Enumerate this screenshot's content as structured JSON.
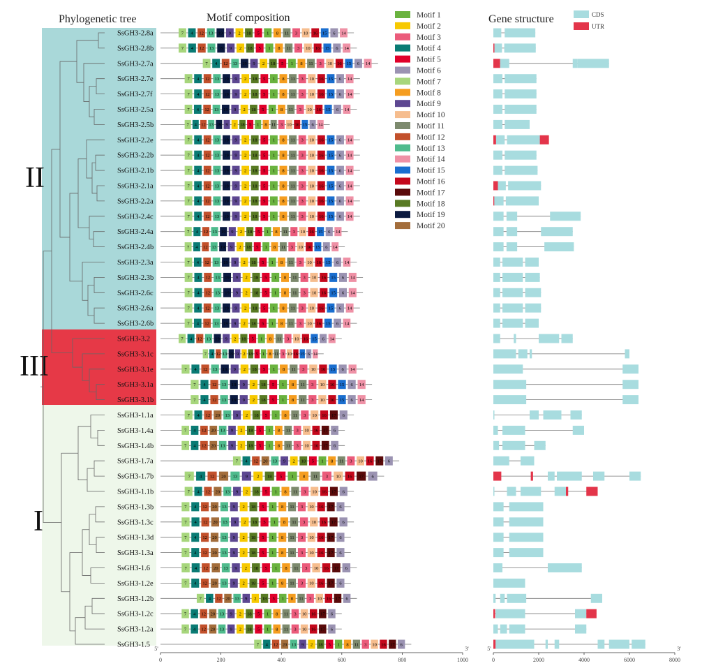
{
  "titles": {
    "tree": "Phylogenetic tree",
    "motif": "Motif composition",
    "gene": "Gene structure"
  },
  "clades": {
    "II": "II",
    "III": "III",
    "I": "I"
  },
  "colors": {
    "cladeII": "#a9d8d9",
    "cladeIII": "#e63947",
    "cladeI": "#eef7ea",
    "cds": "#a8dcdf",
    "utr": "#e3354a",
    "line": "#777777"
  },
  "genes": [
    {
      "name": "SsGH3-2.8a",
      "clade": "II"
    },
    {
      "name": "SsGH3-2.8b",
      "clade": "II"
    },
    {
      "name": "SsGH3-2.7a",
      "clade": "II"
    },
    {
      "name": "SsGH3-2.7e",
      "clade": "II"
    },
    {
      "name": "SsGH3-2.7f",
      "clade": "II"
    },
    {
      "name": "SsGH3-2.5a",
      "clade": "II"
    },
    {
      "name": "SsGH3-2.5b",
      "clade": "II"
    },
    {
      "name": "SsGH3-2.2e",
      "clade": "II"
    },
    {
      "name": "SsGH3-2.2b",
      "clade": "II"
    },
    {
      "name": "SsGH3-2.1b",
      "clade": "II"
    },
    {
      "name": "SsGH3-2.1a",
      "clade": "II"
    },
    {
      "name": "SsGH3-2.2a",
      "clade": "II"
    },
    {
      "name": "SsGH3-2.4c",
      "clade": "II"
    },
    {
      "name": "SsGH3-2.4a",
      "clade": "II"
    },
    {
      "name": "SsGH3-2.4b",
      "clade": "II"
    },
    {
      "name": "SsGH3-2.3a",
      "clade": "II"
    },
    {
      "name": "SsGH3-2.3b",
      "clade": "II"
    },
    {
      "name": "SsGH3-2.6c",
      "clade": "II"
    },
    {
      "name": "SsGH3-2.6a",
      "clade": "II"
    },
    {
      "name": "SsGH3-2.6b",
      "clade": "II"
    },
    {
      "name": "SsGH3-3.2",
      "clade": "III"
    },
    {
      "name": "SsGH3-3.1c",
      "clade": "III"
    },
    {
      "name": "SsGH3-3.1e",
      "clade": "III"
    },
    {
      "name": "SsGH3-3.1a",
      "clade": "III"
    },
    {
      "name": "SsGH3-3.1b",
      "clade": "III"
    },
    {
      "name": "SsGH3-1.1a",
      "clade": "I"
    },
    {
      "name": "SsGH3-1.4a",
      "clade": "I"
    },
    {
      "name": "SsGH3-1.4b",
      "clade": "I"
    },
    {
      "name": "SsGH3-1.7a",
      "clade": "I"
    },
    {
      "name": "SsGH3-1.7b",
      "clade": "I"
    },
    {
      "name": "SsGH3-1.1b",
      "clade": "I"
    },
    {
      "name": "SsGH3-1.3b",
      "clade": "I"
    },
    {
      "name": "SsGH3-1.3c",
      "clade": "I"
    },
    {
      "name": "SsGH3-1.3d",
      "clade": "I"
    },
    {
      "name": "SsGH3-1.3a",
      "clade": "I"
    },
    {
      "name": "SsGH3-1.6",
      "clade": "I"
    },
    {
      "name": "SsGH3-1.2e",
      "clade": "I"
    },
    {
      "name": "SsGH3-1.2b",
      "clade": "I"
    },
    {
      "name": "SsGH3-1.2c",
      "clade": "I"
    },
    {
      "name": "SsGH3-1.2a",
      "clade": "I"
    },
    {
      "name": "SsGH3-1.5",
      "clade": "I"
    }
  ],
  "legend": {
    "motifs": [
      {
        "label": "Motif 1",
        "color": "#6ab33f"
      },
      {
        "label": "Motif 2",
        "color": "#f7c900"
      },
      {
        "label": "Motif 3",
        "color": "#eb5b7b"
      },
      {
        "label": "Motif 4",
        "color": "#0a7b74"
      },
      {
        "label": "Motif 5",
        "color": "#e0002a"
      },
      {
        "label": "Motif 6",
        "color": "#9b93b2"
      },
      {
        "label": "Motif 7",
        "color": "#a7d67c"
      },
      {
        "label": "Motif 8",
        "color": "#f59d1f"
      },
      {
        "label": "Motif 9",
        "color": "#5d4791"
      },
      {
        "label": "Motif 10",
        "color": "#f6bd8e"
      },
      {
        "label": "Motif 11",
        "color": "#7d8a6e"
      },
      {
        "label": "Motif 12",
        "color": "#c2502b"
      },
      {
        "label": "Motif 13",
        "color": "#4fbb8d"
      },
      {
        "label": "Motif 14",
        "color": "#ef91a6"
      },
      {
        "label": "Motif 15",
        "color": "#1a6ecf"
      },
      {
        "label": "Motif 16",
        "color": "#c4081c"
      },
      {
        "label": "Motif 17",
        "color": "#5a0a0a"
      },
      {
        "label": "Motif 18",
        "color": "#587a23"
      },
      {
        "label": "Motif 19",
        "color": "#0b1a40"
      },
      {
        "label": "Motif 20",
        "color": "#a36d3b"
      }
    ],
    "cds": "CDS",
    "utr": "UTR"
  },
  "motif_order": {
    "II": [
      "7",
      "4",
      "12",
      "13",
      "19",
      "9",
      "2",
      "18",
      "5",
      "1",
      "8",
      "11",
      "3",
      "10",
      "16",
      "15",
      "6",
      "14"
    ],
    "III": [
      "7",
      "4",
      "12",
      "13",
      "19",
      "9",
      "2",
      "18",
      "5",
      "1",
      "8",
      "11",
      "3",
      "10",
      "16",
      "15",
      "6",
      "14"
    ],
    "I": [
      "7",
      "4",
      "12",
      "20",
      "13",
      "9",
      "2",
      "18",
      "5",
      "1",
      "8",
      "11",
      "3",
      "10",
      "16",
      "17",
      "6"
    ]
  },
  "axes": {
    "motif": {
      "min": 0,
      "max": 1000,
      "ticks": [
        "0",
        "200",
        "400",
        "600",
        "800",
        "1000"
      ],
      "start": "5'",
      "end": "3'"
    },
    "gene": {
      "min": 0,
      "max": 8000,
      "ticks": [
        "0",
        "2000",
        "4000",
        "6000",
        "8000"
      ],
      "start": "5'",
      "end": "3'"
    }
  }
}
